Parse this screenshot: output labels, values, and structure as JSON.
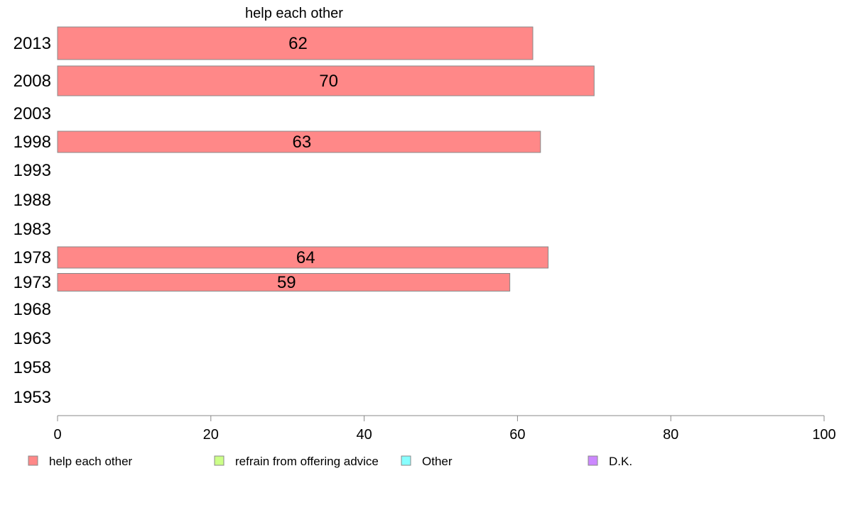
{
  "chart_data": {
    "type": "bar",
    "orientation": "horizontal",
    "title": "help each other",
    "categories": [
      "2013",
      "2008",
      "2003",
      "1998",
      "1993",
      "1988",
      "1983",
      "1978",
      "1973",
      "1968",
      "1963",
      "1958",
      "1953"
    ],
    "series": [
      {
        "name": "help each other",
        "color": "#ff8888",
        "values": [
          62,
          70,
          null,
          63,
          null,
          null,
          null,
          64,
          59,
          null,
          null,
          null,
          null
        ]
      },
      {
        "name": "refrain from offering advice",
        "color": "#ccff88",
        "values": [
          null,
          null,
          null,
          null,
          null,
          null,
          null,
          null,
          null,
          null,
          null,
          null,
          null
        ]
      },
      {
        "name": "Other",
        "color": "#88ffff",
        "values": [
          null,
          null,
          null,
          null,
          null,
          null,
          null,
          null,
          null,
          null,
          null,
          null,
          null
        ]
      },
      {
        "name": "D.K.",
        "color": "#cc88ff",
        "values": [
          null,
          null,
          null,
          null,
          null,
          null,
          null,
          null,
          null,
          null,
          null,
          null,
          null
        ]
      }
    ],
    "data_labels": [
      "62",
      "70",
      "",
      "63",
      "",
      "",
      "",
      "64",
      "59",
      "",
      "",
      "",
      ""
    ],
    "xlim": [
      0,
      100
    ],
    "xticks": [
      "0",
      "20",
      "40",
      "60",
      "80",
      "100"
    ],
    "grid": false,
    "legend_position": "bottom"
  }
}
